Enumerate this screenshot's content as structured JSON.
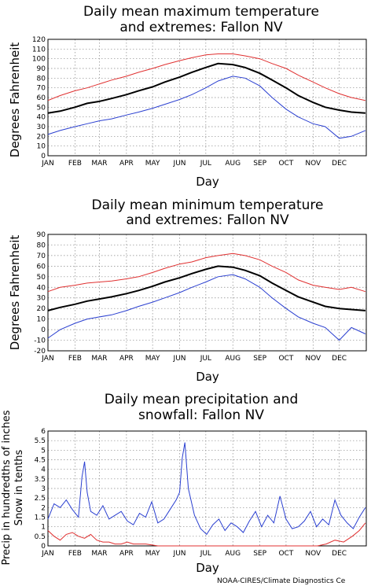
{
  "chart_data": [
    {
      "type": "line",
      "title_line1": "Daily mean maximum temperature",
      "title_line2": "and extremes: Fallon NV",
      "ylabel": "Degrees Fahrenheit",
      "xlabel": "Day",
      "ylim": [
        0,
        120
      ],
      "yticks": [
        "0",
        "10",
        "20",
        "30",
        "40",
        "50",
        "60",
        "70",
        "80",
        "90",
        "100",
        "110",
        "120"
      ],
      "months": [
        "JAN",
        "FEB",
        "MAR",
        "APR",
        "MAY",
        "JUN",
        "JUL",
        "AUG",
        "SEP",
        "OCT",
        "NOV",
        "DEC"
      ],
      "grid": true,
      "series": [
        {
          "role": "extreme-high",
          "color": "#e03030",
          "x": [
            1,
            15,
            32,
            46,
            60,
            74,
            91,
            105,
            121,
            135,
            152,
            166,
            182,
            196,
            213,
            227,
            244,
            258,
            274,
            288,
            305,
            319,
            335,
            349,
            365
          ],
          "y": [
            57,
            62,
            67,
            70,
            74,
            78,
            82,
            86,
            90,
            94,
            98,
            101,
            104,
            105,
            105,
            103,
            100,
            95,
            90,
            83,
            76,
            70,
            64,
            60,
            57
          ]
        },
        {
          "role": "mean",
          "color": "#000000",
          "x": [
            1,
            15,
            32,
            46,
            60,
            74,
            91,
            105,
            121,
            135,
            152,
            166,
            182,
            196,
            213,
            227,
            244,
            258,
            274,
            288,
            305,
            319,
            335,
            349,
            365
          ],
          "y": [
            44,
            46,
            50,
            54,
            56,
            59,
            63,
            67,
            71,
            76,
            81,
            86,
            91,
            95,
            94,
            91,
            85,
            78,
            70,
            62,
            55,
            50,
            47,
            45,
            44
          ]
        },
        {
          "role": "extreme-low",
          "color": "#2a3fd0",
          "x": [
            1,
            15,
            32,
            46,
            60,
            74,
            91,
            105,
            121,
            135,
            152,
            166,
            182,
            196,
            213,
            227,
            244,
            258,
            274,
            288,
            305,
            319,
            335,
            349,
            365
          ],
          "y": [
            22,
            26,
            30,
            33,
            36,
            38,
            42,
            45,
            49,
            53,
            58,
            63,
            70,
            77,
            82,
            80,
            72,
            60,
            48,
            40,
            33,
            30,
            18,
            20,
            26
          ]
        }
      ]
    },
    {
      "type": "line",
      "title_line1": "Daily mean minimum temperature",
      "title_line2": "and extremes: Fallon NV",
      "ylabel": "Degrees Fahrenheit",
      "xlabel": "Day",
      "ylim": [
        -20,
        90
      ],
      "yticks": [
        "-20",
        "-10",
        "0",
        "10",
        "20",
        "30",
        "40",
        "50",
        "60",
        "70",
        "80",
        "90"
      ],
      "months": [
        "JAN",
        "FEB",
        "MAR",
        "APR",
        "MAY",
        "JUN",
        "JUL",
        "AUG",
        "SEP",
        "OCT",
        "NOV",
        "DEC"
      ],
      "grid": true,
      "series": [
        {
          "role": "extreme-high",
          "color": "#e03030",
          "x": [
            1,
            15,
            32,
            46,
            60,
            74,
            91,
            105,
            121,
            135,
            152,
            166,
            182,
            196,
            213,
            227,
            244,
            258,
            274,
            288,
            305,
            319,
            335,
            349,
            365
          ],
          "y": [
            36,
            40,
            42,
            44,
            45,
            46,
            48,
            50,
            54,
            58,
            62,
            64,
            68,
            70,
            72,
            70,
            66,
            60,
            54,
            47,
            42,
            40,
            38,
            40,
            36
          ]
        },
        {
          "role": "mean",
          "color": "#000000",
          "x": [
            1,
            15,
            32,
            46,
            60,
            74,
            91,
            105,
            121,
            135,
            152,
            166,
            182,
            196,
            213,
            227,
            244,
            258,
            274,
            288,
            305,
            319,
            335,
            349,
            365
          ],
          "y": [
            18,
            21,
            24,
            27,
            29,
            31,
            34,
            37,
            41,
            45,
            49,
            53,
            57,
            60,
            59,
            56,
            51,
            44,
            37,
            31,
            26,
            22,
            20,
            19,
            18
          ]
        },
        {
          "role": "extreme-low",
          "color": "#2a3fd0",
          "x": [
            1,
            15,
            32,
            46,
            60,
            74,
            91,
            105,
            121,
            135,
            152,
            166,
            182,
            196,
            213,
            227,
            244,
            258,
            274,
            288,
            305,
            319,
            335,
            349,
            365
          ],
          "y": [
            -8,
            0,
            6,
            10,
            12,
            14,
            18,
            22,
            26,
            30,
            35,
            40,
            45,
            50,
            52,
            48,
            40,
            30,
            20,
            12,
            6,
            2,
            -10,
            2,
            -4
          ]
        }
      ]
    },
    {
      "type": "line",
      "title_line1": "Daily mean precipitation and",
      "title_line2": "snowfall: Fallon NV",
      "ylabel_line1": "Precip in hundredths of inches",
      "ylabel_line2": "Snow in tenths",
      "xlabel": "Day",
      "ylim": [
        0,
        6
      ],
      "yticks": [
        "0",
        "0.5",
        "1",
        "1.5",
        "2",
        "2.5",
        "3",
        "3.5",
        "4",
        "4.5",
        "5",
        "5.5",
        "6"
      ],
      "months": [
        "JAN",
        "FEB",
        "MAR",
        "APR",
        "MAY",
        "JUN",
        "JUL",
        "AUG",
        "SEP",
        "OCT",
        "NOV",
        "DEC"
      ],
      "grid": true,
      "series": [
        {
          "role": "precipitation",
          "color": "#2a3fd0",
          "x": [
            1,
            8,
            15,
            22,
            29,
            36,
            40,
            43,
            46,
            50,
            57,
            64,
            71,
            78,
            85,
            92,
            99,
            106,
            113,
            120,
            127,
            134,
            141,
            148,
            152,
            155,
            158,
            162,
            169,
            176,
            183,
            190,
            197,
            204,
            211,
            218,
            225,
            232,
            239,
            246,
            253,
            260,
            267,
            274,
            281,
            288,
            295,
            302,
            309,
            316,
            323,
            330,
            337,
            344,
            351,
            358,
            365
          ],
          "y": [
            1.4,
            2.2,
            2.0,
            2.4,
            1.9,
            1.5,
            3.6,
            4.4,
            2.8,
            1.8,
            1.6,
            2.1,
            1.4,
            1.6,
            1.8,
            1.3,
            1.1,
            1.7,
            1.5,
            2.3,
            1.2,
            1.4,
            1.9,
            2.4,
            2.8,
            4.6,
            5.4,
            3.0,
            1.6,
            0.9,
            0.6,
            1.1,
            1.4,
            0.8,
            1.2,
            1.0,
            0.7,
            1.3,
            1.8,
            1.0,
            1.6,
            1.2,
            2.6,
            1.4,
            0.9,
            1.0,
            1.3,
            1.8,
            1.0,
            1.4,
            1.1,
            2.4,
            1.6,
            1.2,
            0.9,
            1.5,
            2.0
          ]
        },
        {
          "role": "snowfall",
          "color": "#e03030",
          "x": [
            1,
            8,
            15,
            22,
            29,
            36,
            43,
            50,
            57,
            64,
            71,
            78,
            85,
            92,
            99,
            106,
            113,
            120,
            127,
            134,
            141,
            148,
            155,
            162,
            169,
            365,
            300,
            310,
            320,
            330,
            340,
            350,
            358
          ],
          "y": [
            0.8,
            0.5,
            0.3,
            0.6,
            0.7,
            0.5,
            0.4,
            0.6,
            0.3,
            0.2,
            0.2,
            0.1,
            0.1,
            0.2,
            0.1,
            0.1,
            0.1,
            0.05,
            0.0,
            0.0,
            0.0,
            0.0,
            0.0,
            0.0,
            0.0,
            1.2,
            0.0,
            0.0,
            0.1,
            0.3,
            0.2,
            0.5,
            0.8
          ]
        }
      ]
    }
  ],
  "credit": "NOAA-CIRES/Climate Diagnostics Ce"
}
